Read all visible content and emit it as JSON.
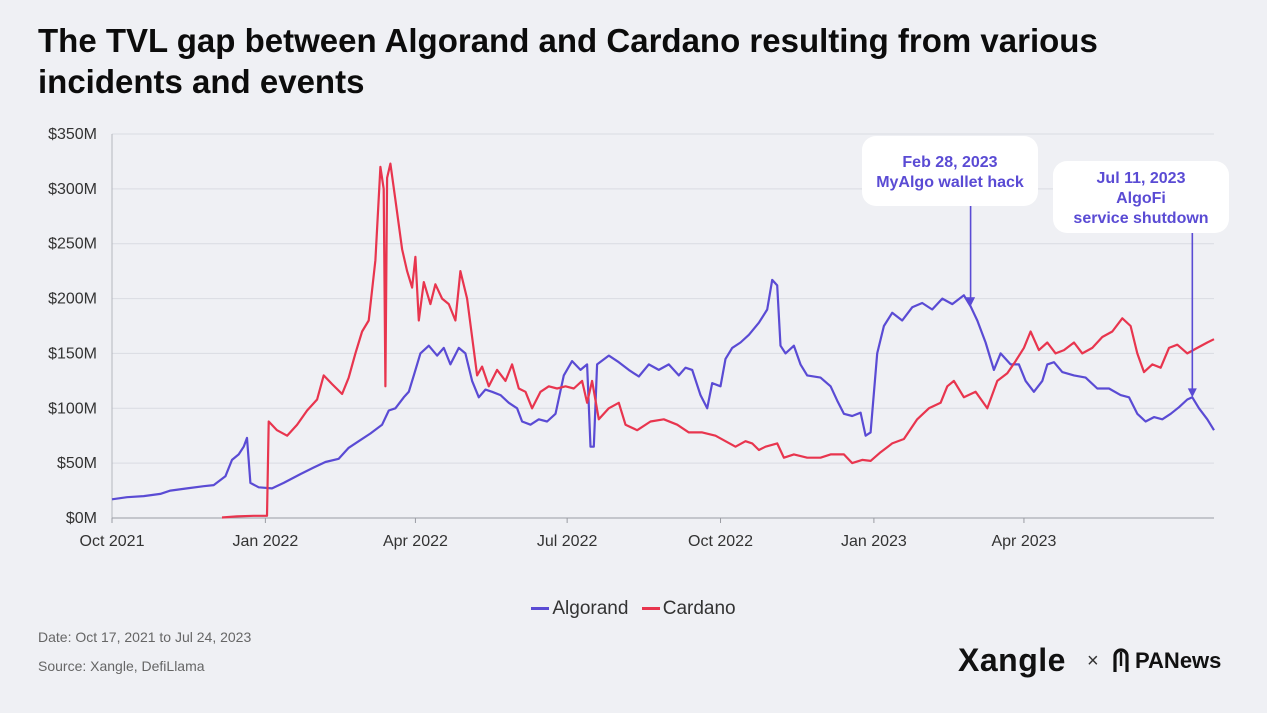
{
  "title": "The TVL gap between Algorand and Cardano resulting from various incidents and events",
  "footer": {
    "date": "Date: Oct 17, 2021 to Jul 24, 2023",
    "source": "Source: Xangle, DefiLlama"
  },
  "logos": {
    "xangle": "Xangle",
    "times": "×",
    "panews": "PANews"
  },
  "chart_data": {
    "type": "line",
    "x_type": "date",
    "xlim": [
      "2021-10-01",
      "2023-07-24"
    ],
    "ylim": [
      0,
      350
    ],
    "y_unit": "$M",
    "y_ticks": [
      {
        "value": 0,
        "label": "$0M"
      },
      {
        "value": 50,
        "label": "$50M"
      },
      {
        "value": 100,
        "label": "$100M"
      },
      {
        "value": 150,
        "label": "$150M"
      },
      {
        "value": 200,
        "label": "$200M"
      },
      {
        "value": 250,
        "label": "$250M"
      },
      {
        "value": 300,
        "label": "$300M"
      },
      {
        "value": 350,
        "label": "$350M"
      }
    ],
    "x_ticks": [
      {
        "date": "2021-10-01",
        "label": "Oct 2021"
      },
      {
        "date": "2022-01-01",
        "label": "Jan 2022"
      },
      {
        "date": "2022-04-01",
        "label": "Apr 2022"
      },
      {
        "date": "2022-07-01",
        "label": "Jul 2022"
      },
      {
        "date": "2022-10-01",
        "label": "Oct 2022"
      },
      {
        "date": "2023-01-01",
        "label": "Jan 2023"
      },
      {
        "date": "2023-04-01",
        "label": "Apr 2023"
      }
    ],
    "grid": "horizontal",
    "legend_position": "bottom",
    "series": [
      {
        "name": "Algorand",
        "color": "#5a4bd4",
        "points": [
          [
            "2021-10-01",
            17
          ],
          [
            "2021-10-10",
            19
          ],
          [
            "2021-10-20",
            20
          ],
          [
            "2021-10-30",
            22
          ],
          [
            "2021-11-05",
            25
          ],
          [
            "2021-11-15",
            27
          ],
          [
            "2021-11-25",
            29
          ],
          [
            "2021-12-01",
            30
          ],
          [
            "2021-12-08",
            38
          ],
          [
            "2021-12-12",
            53
          ],
          [
            "2021-12-16",
            58
          ],
          [
            "2021-12-19",
            65
          ],
          [
            "2021-12-21",
            73
          ],
          [
            "2021-12-23",
            32
          ],
          [
            "2021-12-28",
            28
          ],
          [
            "2022-01-05",
            27
          ],
          [
            "2022-01-12",
            32
          ],
          [
            "2022-01-22",
            40
          ],
          [
            "2022-01-30",
            46
          ],
          [
            "2022-02-06",
            51
          ],
          [
            "2022-02-14",
            54
          ],
          [
            "2022-02-20",
            64
          ],
          [
            "2022-02-26",
            70
          ],
          [
            "2022-03-05",
            77
          ],
          [
            "2022-03-12",
            85
          ],
          [
            "2022-03-16",
            98
          ],
          [
            "2022-03-20",
            100
          ],
          [
            "2022-03-25",
            110
          ],
          [
            "2022-03-28",
            115
          ],
          [
            "2022-03-31",
            130
          ],
          [
            "2022-04-04",
            150
          ],
          [
            "2022-04-09",
            157
          ],
          [
            "2022-04-14",
            148
          ],
          [
            "2022-04-18",
            155
          ],
          [
            "2022-04-22",
            140
          ],
          [
            "2022-04-27",
            155
          ],
          [
            "2022-05-01",
            150
          ],
          [
            "2022-05-05",
            125
          ],
          [
            "2022-05-09",
            110
          ],
          [
            "2022-05-13",
            117
          ],
          [
            "2022-05-17",
            115
          ],
          [
            "2022-05-22",
            112
          ],
          [
            "2022-05-27",
            105
          ],
          [
            "2022-06-01",
            100
          ],
          [
            "2022-06-04",
            88
          ],
          [
            "2022-06-09",
            85
          ],
          [
            "2022-06-14",
            90
          ],
          [
            "2022-06-19",
            88
          ],
          [
            "2022-06-24",
            95
          ],
          [
            "2022-06-29",
            130
          ],
          [
            "2022-07-04",
            143
          ],
          [
            "2022-07-09",
            135
          ],
          [
            "2022-07-13",
            140
          ],
          [
            "2022-07-15",
            65
          ],
          [
            "2022-07-17",
            65
          ],
          [
            "2022-07-19",
            140
          ],
          [
            "2022-07-26",
            148
          ],
          [
            "2022-08-01",
            142
          ],
          [
            "2022-08-07",
            135
          ],
          [
            "2022-08-13",
            129
          ],
          [
            "2022-08-19",
            140
          ],
          [
            "2022-08-25",
            135
          ],
          [
            "2022-08-31",
            140
          ],
          [
            "2022-09-06",
            130
          ],
          [
            "2022-09-10",
            137
          ],
          [
            "2022-09-14",
            135
          ],
          [
            "2022-09-19",
            112
          ],
          [
            "2022-09-23",
            100
          ],
          [
            "2022-09-26",
            123
          ],
          [
            "2022-10-01",
            120
          ],
          [
            "2022-10-04",
            145
          ],
          [
            "2022-10-08",
            155
          ],
          [
            "2022-10-13",
            160
          ],
          [
            "2022-10-18",
            167
          ],
          [
            "2022-10-24",
            178
          ],
          [
            "2022-10-29",
            190
          ],
          [
            "2022-11-01",
            217
          ],
          [
            "2022-11-04",
            212
          ],
          [
            "2022-11-06",
            157
          ],
          [
            "2022-11-09",
            150
          ],
          [
            "2022-11-14",
            157
          ],
          [
            "2022-11-18",
            140
          ],
          [
            "2022-11-22",
            130
          ],
          [
            "2022-11-30",
            128
          ],
          [
            "2022-12-06",
            120
          ],
          [
            "2022-12-10",
            107
          ],
          [
            "2022-12-14",
            95
          ],
          [
            "2022-12-19",
            93
          ],
          [
            "2022-12-24",
            96
          ],
          [
            "2022-12-27",
            75
          ],
          [
            "2022-12-30",
            78
          ],
          [
            "2023-01-03",
            150
          ],
          [
            "2023-01-07",
            175
          ],
          [
            "2023-01-12",
            187
          ],
          [
            "2023-01-18",
            180
          ],
          [
            "2023-01-24",
            192
          ],
          [
            "2023-01-30",
            196
          ],
          [
            "2023-02-05",
            190
          ],
          [
            "2023-02-11",
            200
          ],
          [
            "2023-02-17",
            195
          ],
          [
            "2023-02-24",
            203
          ],
          [
            "2023-02-28",
            193
          ],
          [
            "2023-03-04",
            180
          ],
          [
            "2023-03-09",
            160
          ],
          [
            "2023-03-14",
            135
          ],
          [
            "2023-03-18",
            150
          ],
          [
            "2023-03-24",
            140
          ],
          [
            "2023-03-29",
            140
          ],
          [
            "2023-04-02",
            125
          ],
          [
            "2023-04-07",
            115
          ],
          [
            "2023-04-12",
            125
          ],
          [
            "2023-04-15",
            140
          ],
          [
            "2023-04-19",
            142
          ],
          [
            "2023-04-24",
            133
          ],
          [
            "2023-05-01",
            130
          ],
          [
            "2023-05-08",
            128
          ],
          [
            "2023-05-15",
            118
          ],
          [
            "2023-05-22",
            118
          ],
          [
            "2023-05-29",
            112
          ],
          [
            "2023-06-03",
            110
          ],
          [
            "2023-06-08",
            95
          ],
          [
            "2023-06-13",
            88
          ],
          [
            "2023-06-18",
            92
          ],
          [
            "2023-06-23",
            90
          ],
          [
            "2023-06-28",
            95
          ],
          [
            "2023-07-03",
            101
          ],
          [
            "2023-07-08",
            108
          ],
          [
            "2023-07-11",
            110
          ],
          [
            "2023-07-15",
            100
          ],
          [
            "2023-07-20",
            90
          ],
          [
            "2023-07-24",
            80
          ]
        ]
      },
      {
        "name": "Cardano",
        "color": "#e8354e",
        "points": [
          [
            "2021-12-06",
            0.5
          ],
          [
            "2021-12-15",
            1.5
          ],
          [
            "2021-12-25",
            2
          ],
          [
            "2022-01-02",
            2
          ],
          [
            "2022-01-03",
            88
          ],
          [
            "2022-01-08",
            80
          ],
          [
            "2022-01-14",
            75
          ],
          [
            "2022-01-20",
            85
          ],
          [
            "2022-01-26",
            98
          ],
          [
            "2022-02-01",
            108
          ],
          [
            "2022-02-05",
            130
          ],
          [
            "2022-02-10",
            122
          ],
          [
            "2022-02-16",
            113
          ],
          [
            "2022-02-20",
            128
          ],
          [
            "2022-02-24",
            150
          ],
          [
            "2022-02-28",
            170
          ],
          [
            "2022-03-04",
            180
          ],
          [
            "2022-03-08",
            235
          ],
          [
            "2022-03-11",
            320
          ],
          [
            "2022-03-13",
            300
          ],
          [
            "2022-03-14",
            120
          ],
          [
            "2022-03-15",
            310
          ],
          [
            "2022-03-17",
            323
          ],
          [
            "2022-03-20",
            290
          ],
          [
            "2022-03-24",
            245
          ],
          [
            "2022-03-27",
            225
          ],
          [
            "2022-03-30",
            210
          ],
          [
            "2022-04-01",
            238
          ],
          [
            "2022-04-03",
            180
          ],
          [
            "2022-04-06",
            215
          ],
          [
            "2022-04-10",
            195
          ],
          [
            "2022-04-13",
            213
          ],
          [
            "2022-04-17",
            200
          ],
          [
            "2022-04-21",
            195
          ],
          [
            "2022-04-25",
            180
          ],
          [
            "2022-04-28",
            225
          ],
          [
            "2022-05-02",
            200
          ],
          [
            "2022-05-05",
            165
          ],
          [
            "2022-05-08",
            130
          ],
          [
            "2022-05-11",
            138
          ],
          [
            "2022-05-15",
            120
          ],
          [
            "2022-05-20",
            135
          ],
          [
            "2022-05-25",
            125
          ],
          [
            "2022-05-29",
            140
          ],
          [
            "2022-06-02",
            118
          ],
          [
            "2022-06-06",
            115
          ],
          [
            "2022-06-10",
            100
          ],
          [
            "2022-06-15",
            115
          ],
          [
            "2022-06-20",
            120
          ],
          [
            "2022-06-25",
            118
          ],
          [
            "2022-06-30",
            120
          ],
          [
            "2022-07-05",
            118
          ],
          [
            "2022-07-10",
            125
          ],
          [
            "2022-07-13",
            105
          ],
          [
            "2022-07-16",
            125
          ],
          [
            "2022-07-20",
            90
          ],
          [
            "2022-07-26",
            100
          ],
          [
            "2022-08-01",
            105
          ],
          [
            "2022-08-05",
            85
          ],
          [
            "2022-08-12",
            80
          ],
          [
            "2022-08-20",
            88
          ],
          [
            "2022-08-28",
            90
          ],
          [
            "2022-09-05",
            85
          ],
          [
            "2022-09-12",
            78
          ],
          [
            "2022-09-20",
            78
          ],
          [
            "2022-09-28",
            75
          ],
          [
            "2022-10-04",
            70
          ],
          [
            "2022-10-10",
            65
          ],
          [
            "2022-10-16",
            70
          ],
          [
            "2022-10-20",
            68
          ],
          [
            "2022-10-24",
            62
          ],
          [
            "2022-10-28",
            65
          ],
          [
            "2022-11-04",
            68
          ],
          [
            "2022-11-08",
            55
          ],
          [
            "2022-11-14",
            58
          ],
          [
            "2022-11-22",
            55
          ],
          [
            "2022-11-30",
            55
          ],
          [
            "2022-12-06",
            58
          ],
          [
            "2022-12-14",
            58
          ],
          [
            "2022-12-19",
            50
          ],
          [
            "2022-12-25",
            53
          ],
          [
            "2022-12-30",
            52
          ],
          [
            "2023-01-05",
            60
          ],
          [
            "2023-01-12",
            68
          ],
          [
            "2023-01-19",
            72
          ],
          [
            "2023-01-27",
            90
          ],
          [
            "2023-02-03",
            100
          ],
          [
            "2023-02-10",
            105
          ],
          [
            "2023-02-14",
            120
          ],
          [
            "2023-02-18",
            125
          ],
          [
            "2023-02-24",
            110
          ],
          [
            "2023-03-03",
            115
          ],
          [
            "2023-03-10",
            100
          ],
          [
            "2023-03-16",
            125
          ],
          [
            "2023-03-22",
            132
          ],
          [
            "2023-03-27",
            143
          ],
          [
            "2023-04-01",
            155
          ],
          [
            "2023-04-05",
            170
          ],
          [
            "2023-04-10",
            153
          ],
          [
            "2023-04-15",
            160
          ],
          [
            "2023-04-20",
            150
          ],
          [
            "2023-04-25",
            153
          ],
          [
            "2023-05-01",
            160
          ],
          [
            "2023-05-06",
            150
          ],
          [
            "2023-05-12",
            155
          ],
          [
            "2023-05-18",
            165
          ],
          [
            "2023-05-24",
            170
          ],
          [
            "2023-05-30",
            182
          ],
          [
            "2023-06-04",
            175
          ],
          [
            "2023-06-08",
            150
          ],
          [
            "2023-06-12",
            133
          ],
          [
            "2023-06-17",
            140
          ],
          [
            "2023-06-22",
            137
          ],
          [
            "2023-06-27",
            155
          ],
          [
            "2023-07-02",
            158
          ],
          [
            "2023-07-08",
            150
          ],
          [
            "2023-07-14",
            155
          ],
          [
            "2023-07-20",
            160
          ],
          [
            "2023-07-24",
            163
          ]
        ]
      }
    ],
    "annotations": [
      {
        "date": "2023-02-28",
        "value": 193,
        "lines": [
          "Feb 28, 2023",
          "MyAlgo wallet hack"
        ]
      },
      {
        "date": "2023-07-11",
        "value": 110,
        "lines": [
          "Jul 11, 2023",
          "AlgoFi",
          "service shutdown"
        ]
      }
    ]
  }
}
